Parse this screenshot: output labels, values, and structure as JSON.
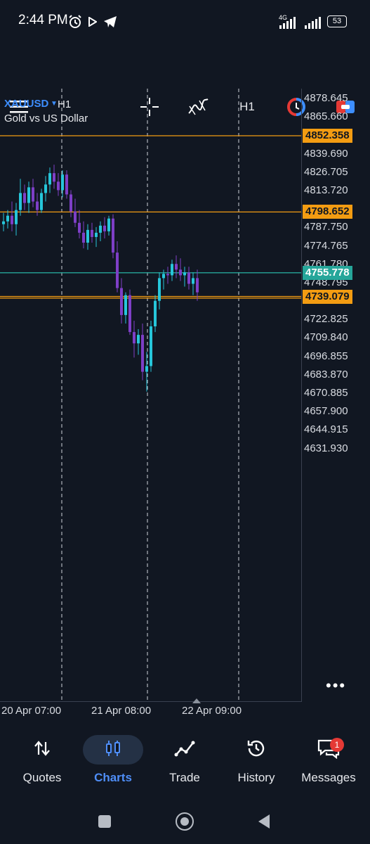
{
  "status_bar": {
    "time": "2:44 PM",
    "network": "4G",
    "battery": "53"
  },
  "toolbar": {
    "timeframe": "H1"
  },
  "chart": {
    "symbol": "XAUUSD",
    "timeframe": "H1",
    "description": "Gold vs US Dollar",
    "price_axis": [
      "4878.645",
      "4865.660",
      "4839.690",
      "4826.705",
      "4813.720",
      "4787.750",
      "4774.765",
      "4761.780",
      "4748.795",
      "4722.825",
      "4709.840",
      "4696.855",
      "4683.870",
      "4670.885",
      "4657.900",
      "4644.915",
      "4631.930"
    ],
    "hlines": [
      {
        "label": "4852.358",
        "color": "#f39c12"
      },
      {
        "label": "4798.652",
        "color": "#f39c12"
      },
      {
        "label": "4755.778",
        "color": "#26a69a"
      },
      {
        "label": "4739.079",
        "color": "#f39c12"
      }
    ],
    "time_axis": [
      "20 Apr 07:00",
      "21 Apr 08:00",
      "22 Apr 09:00"
    ],
    "more_label": "•••"
  },
  "chart_data": {
    "type": "candlestick",
    "title": "XAUUSD H1",
    "ylim": [
      4625,
      4885
    ],
    "up_color": "#26c6da",
    "down_color": "#7e3fc7",
    "candles": [
      {
        "o": 4790,
        "h": 4798,
        "l": 4785,
        "c": 4792
      },
      {
        "o": 4792,
        "h": 4800,
        "l": 4787,
        "c": 4796
      },
      {
        "o": 4796,
        "h": 4806,
        "l": 4785,
        "c": 4790
      },
      {
        "o": 4790,
        "h": 4805,
        "l": 4782,
        "c": 4800
      },
      {
        "o": 4800,
        "h": 4822,
        "l": 4796,
        "c": 4812
      },
      {
        "o": 4812,
        "h": 4818,
        "l": 4800,
        "c": 4805
      },
      {
        "o": 4805,
        "h": 4820,
        "l": 4798,
        "c": 4816
      },
      {
        "o": 4816,
        "h": 4822,
        "l": 4802,
        "c": 4806
      },
      {
        "o": 4806,
        "h": 4812,
        "l": 4796,
        "c": 4800
      },
      {
        "o": 4800,
        "h": 4815,
        "l": 4798,
        "c": 4812
      },
      {
        "o": 4812,
        "h": 4824,
        "l": 4806,
        "c": 4818
      },
      {
        "o": 4818,
        "h": 4830,
        "l": 4812,
        "c": 4826
      },
      {
        "o": 4826,
        "h": 4832,
        "l": 4815,
        "c": 4820
      },
      {
        "o": 4820,
        "h": 4826,
        "l": 4810,
        "c": 4814
      },
      {
        "o": 4814,
        "h": 4828,
        "l": 4809,
        "c": 4825
      },
      {
        "o": 4825,
        "h": 4828,
        "l": 4808,
        "c": 4811
      },
      {
        "o": 4811,
        "h": 4814,
        "l": 4795,
        "c": 4799
      },
      {
        "o": 4799,
        "h": 4808,
        "l": 4788,
        "c": 4791
      },
      {
        "o": 4791,
        "h": 4800,
        "l": 4780,
        "c": 4784
      },
      {
        "o": 4784,
        "h": 4792,
        "l": 4773,
        "c": 4777
      },
      {
        "o": 4777,
        "h": 4790,
        "l": 4772,
        "c": 4786
      },
      {
        "o": 4786,
        "h": 4791,
        "l": 4777,
        "c": 4781
      },
      {
        "o": 4781,
        "h": 4788,
        "l": 4774,
        "c": 4784
      },
      {
        "o": 4784,
        "h": 4792,
        "l": 4778,
        "c": 4789
      },
      {
        "o": 4789,
        "h": 4795,
        "l": 4780,
        "c": 4785
      },
      {
        "o": 4785,
        "h": 4796,
        "l": 4782,
        "c": 4794
      },
      {
        "o": 4794,
        "h": 4797,
        "l": 4766,
        "c": 4770
      },
      {
        "o": 4770,
        "h": 4778,
        "l": 4742,
        "c": 4745
      },
      {
        "o": 4745,
        "h": 4752,
        "l": 4720,
        "c": 4726
      },
      {
        "o": 4726,
        "h": 4742,
        "l": 4720,
        "c": 4740
      },
      {
        "o": 4740,
        "h": 4744,
        "l": 4712,
        "c": 4714
      },
      {
        "o": 4714,
        "h": 4722,
        "l": 4696,
        "c": 4706
      },
      {
        "o": 4706,
        "h": 4716,
        "l": 4698,
        "c": 4712
      },
      {
        "o": 4712,
        "h": 4720,
        "l": 4680,
        "c": 4686
      },
      {
        "o": 4686,
        "h": 4700,
        "l": 4672,
        "c": 4690
      },
      {
        "o": 4690,
        "h": 4722,
        "l": 4686,
        "c": 4718
      },
      {
        "o": 4718,
        "h": 4740,
        "l": 4714,
        "c": 4736
      },
      {
        "o": 4736,
        "h": 4756,
        "l": 4730,
        "c": 4752
      },
      {
        "o": 4752,
        "h": 4758,
        "l": 4744,
        "c": 4755
      },
      {
        "o": 4755,
        "h": 4760,
        "l": 4748,
        "c": 4754
      },
      {
        "o": 4754,
        "h": 4765,
        "l": 4750,
        "c": 4762
      },
      {
        "o": 4762,
        "h": 4768,
        "l": 4752,
        "c": 4758
      },
      {
        "o": 4758,
        "h": 4766,
        "l": 4750,
        "c": 4754
      },
      {
        "o": 4754,
        "h": 4760,
        "l": 4746,
        "c": 4756
      },
      {
        "o": 4756,
        "h": 4760,
        "l": 4744,
        "c": 4748
      },
      {
        "o": 4748,
        "h": 4756,
        "l": 4740,
        "c": 4752
      },
      {
        "o": 4752,
        "h": 4758,
        "l": 4736,
        "c": 4742
      }
    ]
  },
  "bottom_nav": {
    "items": [
      {
        "label": "Quotes",
        "icon": "arrows-updown-icon",
        "active": false
      },
      {
        "label": "Charts",
        "icon": "candles-icon",
        "active": true
      },
      {
        "label": "Trade",
        "icon": "trend-icon",
        "active": false
      },
      {
        "label": "History",
        "icon": "history-icon",
        "active": false
      },
      {
        "label": "Messages",
        "icon": "messages-icon",
        "active": false
      }
    ],
    "messages_badge": "1",
    "active_color": "#4f8ef7"
  }
}
